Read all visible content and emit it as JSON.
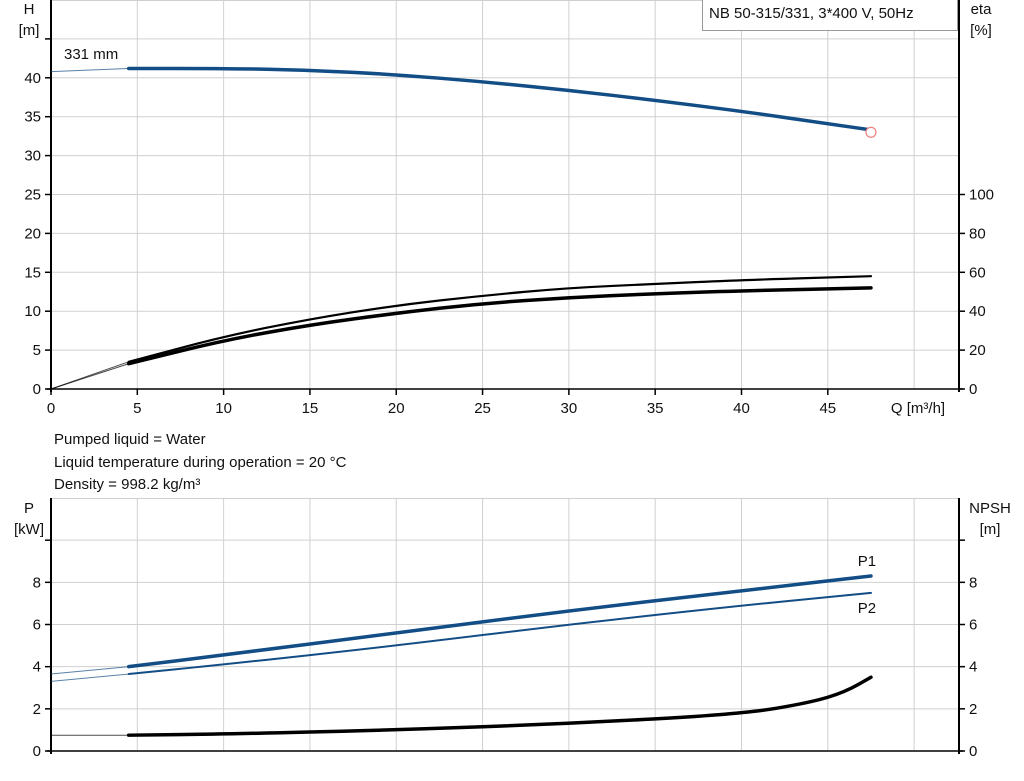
{
  "title": "NB 50-315/331, 3*400 V, 50Hz",
  "info": [
    "Pumped liquid = Water",
    "Liquid temperature during operation = 20 °C",
    "Density = 998.2 kg/m³"
  ],
  "colors": {
    "head": "#134d85",
    "power": "#134d85",
    "efficiency": "#000000",
    "npsh": "#000000",
    "duty_point": "#f08080",
    "grid": "#d0d0d0"
  },
  "chart_data": [
    {
      "type": "line",
      "xlabel": "Q [m³/h]",
      "ylabel": "H\n[m]",
      "y2label": "eta\n[%]",
      "xlim": [
        0,
        52.6
      ],
      "ylim": [
        0,
        50
      ],
      "y2lim": [
        0,
        200
      ],
      "xticks": [
        0,
        5,
        10,
        15,
        20,
        25,
        30,
        35,
        40,
        45
      ],
      "yticks": [
        0,
        5,
        10,
        15,
        20,
        25,
        30,
        35,
        40
      ],
      "y2ticks": [
        0,
        20,
        40,
        60,
        80,
        100
      ],
      "grid": true,
      "impeller_label": "331 mm",
      "series": [
        {
          "key": "H",
          "axis": "left",
          "x": [
            0,
            4.5,
            10,
            15,
            20,
            25,
            30,
            35,
            40,
            45,
            47.5
          ],
          "y": [
            40.8,
            41.2,
            41.2,
            41.0,
            40.4,
            39.5,
            38.4,
            37.1,
            35.7,
            34.1,
            33.3
          ]
        },
        {
          "key": "eta_upper",
          "axis": "right",
          "x": [
            0,
            4.5,
            10,
            15,
            20,
            25,
            30,
            35,
            40,
            47.5
          ],
          "y": [
            0,
            14,
            27,
            36,
            43,
            48,
            52,
            54,
            56,
            58
          ]
        },
        {
          "key": "eta_lower",
          "axis": "right",
          "x": [
            0,
            4.5,
            10,
            15,
            20,
            25,
            30,
            35,
            40,
            47.5
          ],
          "y": [
            0,
            13,
            25,
            33,
            39,
            44,
            47,
            49,
            50.5,
            52
          ]
        }
      ],
      "duty_point": {
        "x": 47.5,
        "y": 33.0
      }
    },
    {
      "type": "line",
      "ylabel": "P\n[kW]",
      "y2label": "NPSH\n[m]",
      "xlim": [
        0,
        52.6
      ],
      "ylim": [
        0,
        12
      ],
      "y2lim": [
        0,
        12
      ],
      "yticks": [
        0,
        2,
        4,
        6,
        8
      ],
      "y2ticks": [
        0,
        2,
        4,
        6,
        8
      ],
      "grid": true,
      "series": [
        {
          "key": "P1",
          "name": "P1",
          "axis": "left",
          "x": [
            0,
            4.5,
            10,
            20,
            30,
            40,
            47.5
          ],
          "y": [
            3.65,
            4.0,
            4.55,
            5.6,
            6.65,
            7.6,
            8.3
          ]
        },
        {
          "key": "P2",
          "name": "P2",
          "axis": "left",
          "x": [
            0,
            4.5,
            10,
            20,
            30,
            40,
            47.5
          ],
          "y": [
            3.3,
            3.65,
            4.1,
            5.0,
            6.0,
            6.9,
            7.5
          ]
        },
        {
          "key": "NPSH",
          "axis": "right",
          "x": [
            0,
            4.5,
            10,
            20,
            30,
            40,
            44,
            46,
            47.5
          ],
          "y": [
            0.75,
            0.75,
            0.8,
            1.0,
            1.3,
            1.75,
            2.3,
            2.8,
            3.5
          ]
        }
      ]
    }
  ]
}
